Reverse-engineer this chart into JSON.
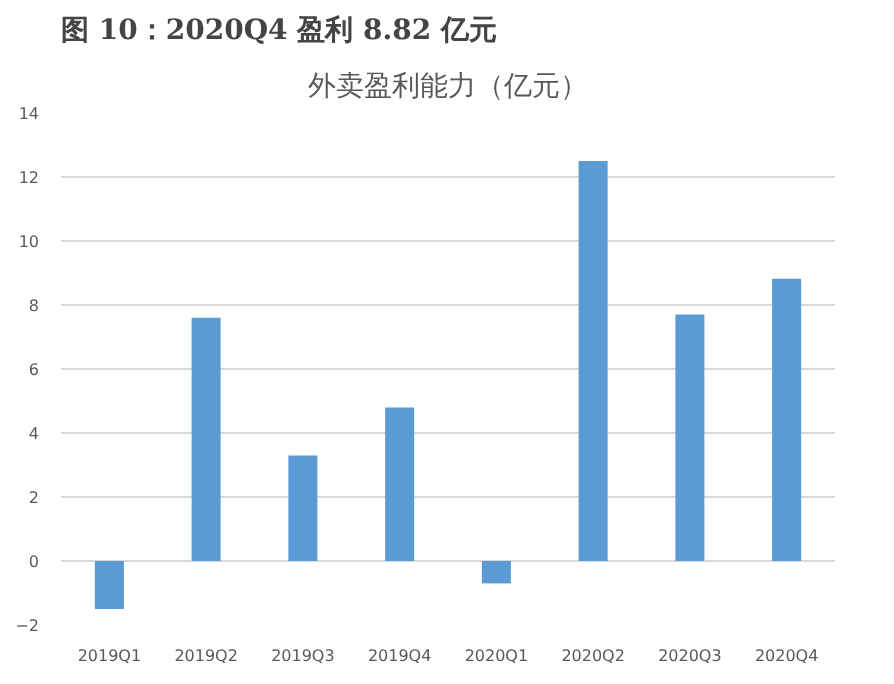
{
  "chart_data": {
    "type": "bar",
    "title": "图 10：2020Q4 盈利 8.82 亿元",
    "subtitle": "外卖盈利能力（亿元）",
    "categories": [
      "2019Q1",
      "2019Q2",
      "2019Q3",
      "2019Q4",
      "2020Q1",
      "2020Q2",
      "2020Q3",
      "2020Q4"
    ],
    "values": [
      -1.5,
      7.6,
      3.3,
      4.8,
      -0.7,
      12.5,
      7.7,
      8.82
    ],
    "color": "#5b9bd5",
    "ylim": [
      -2,
      14
    ],
    "yticks": [
      -2,
      0,
      2,
      4,
      6,
      8,
      10,
      12,
      14
    ],
    "grid": "y"
  }
}
